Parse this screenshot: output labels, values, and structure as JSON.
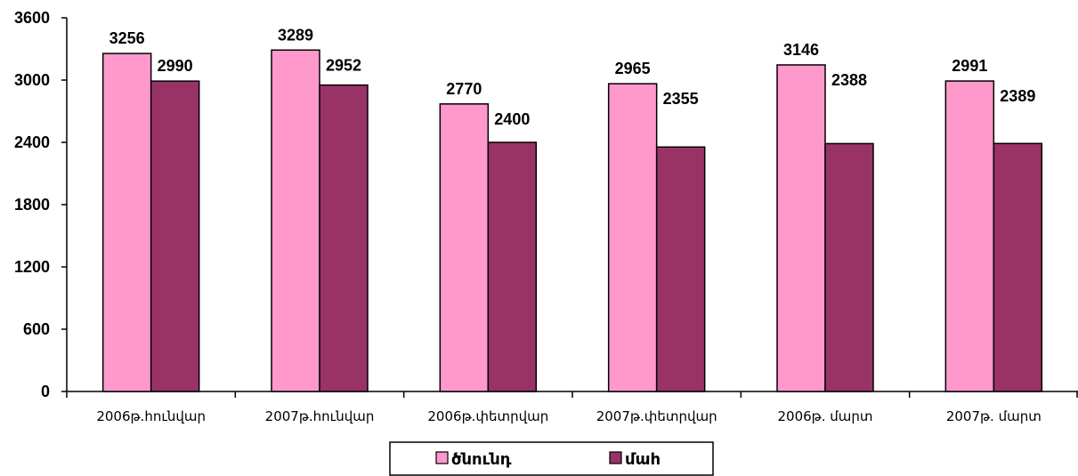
{
  "chart_data": {
    "type": "bar",
    "categories": [
      "2006թ.հունվար",
      "2007թ.հունվար",
      "2006թ.փետրվար",
      "2007թ.փետրվար",
      "2006թ. մարտ",
      "2007թ. մարտ"
    ],
    "series": [
      {
        "name": "ծնունդ",
        "values": [
          3256,
          3289,
          2770,
          2965,
          3146,
          2991
        ],
        "color": "#ff99cc"
      },
      {
        "name": "մահ",
        "values": [
          2990,
          2952,
          2400,
          2355,
          2388,
          2389
        ],
        "color": "#993366"
      }
    ],
    "ylim": [
      0,
      3600
    ],
    "yticks": [
      0,
      600,
      1200,
      1800,
      2400,
      3000,
      3600
    ],
    "data_labels": true,
    "legend_position": "bottom",
    "grid": false
  }
}
